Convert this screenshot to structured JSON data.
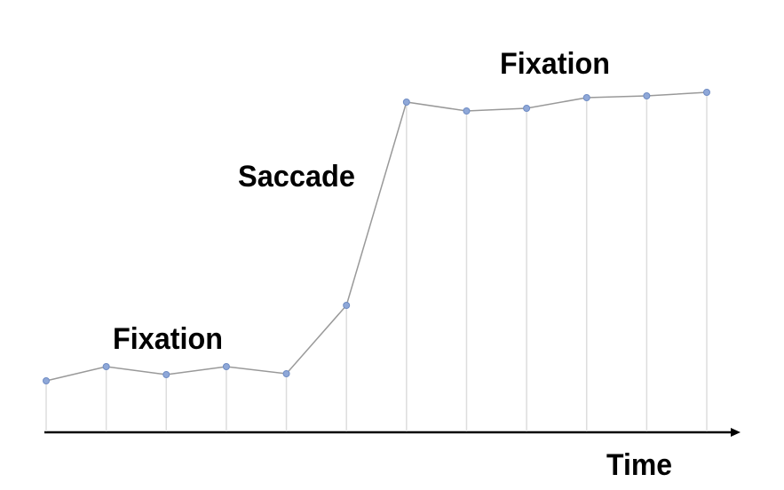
{
  "chart_data": {
    "type": "line",
    "categories": [
      null,
      null,
      null,
      null,
      null,
      null,
      null,
      null,
      null,
      null,
      null,
      null
    ],
    "values": [
      58,
      74,
      65,
      74,
      66,
      143,
      372,
      362,
      365,
      377,
      379,
      383
    ],
    "ylim": [
      0,
      400
    ],
    "color": "#8fa8d8",
    "line_color": "#999999",
    "x_label": "Time",
    "annotations": [
      "Fixation",
      "Saccade",
      "Fixation"
    ]
  }
}
